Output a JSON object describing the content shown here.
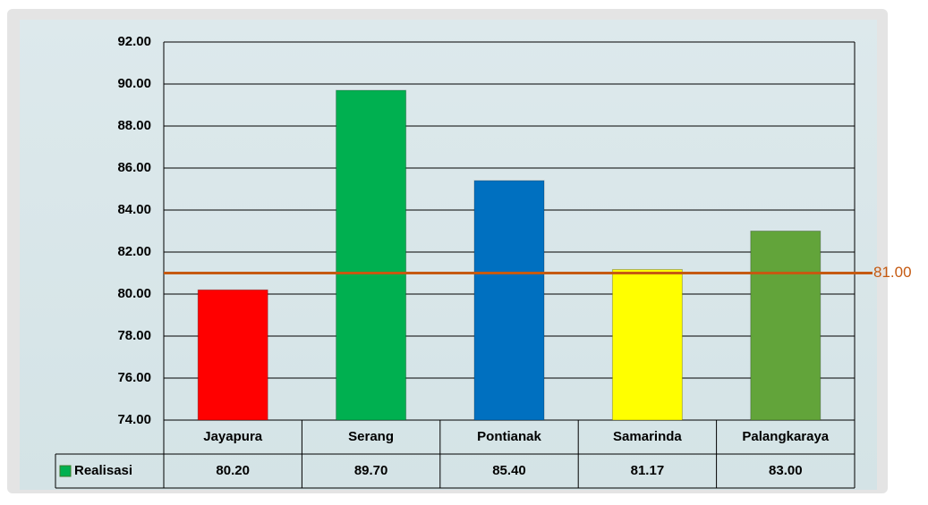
{
  "chart_data": {
    "type": "bar",
    "categories": [
      "Jayapura",
      "Serang",
      "Pontianak",
      "Samarinda",
      "Palangkaraya"
    ],
    "series": [
      {
        "name": "Realisasi",
        "color": "#00b050",
        "colors": [
          "#ff0000",
          "#00b050",
          "#0070c0",
          "#ffff00",
          "#62a43a"
        ],
        "values": [
          80.2,
          89.7,
          85.4,
          81.17,
          83
        ],
        "value_labels": [
          "80.20",
          "89.70",
          "85.40",
          "81.17",
          "83.00"
        ]
      }
    ],
    "ylim": [
      74,
      92
    ],
    "yticks": [
      {
        "value": 74,
        "label": "74.00"
      },
      {
        "value": 76,
        "label": "76.00"
      },
      {
        "value": 78,
        "label": "78.00"
      },
      {
        "value": 80,
        "label": "80.00"
      },
      {
        "value": 82,
        "label": "82.00"
      },
      {
        "value": 84,
        "label": "84.00"
      },
      {
        "value": 86,
        "label": "86.00"
      },
      {
        "value": 88,
        "label": "88.00"
      },
      {
        "value": 90,
        "label": "90.00"
      },
      {
        "value": 92,
        "label": "92.00"
      }
    ],
    "grid": true,
    "reference_line": {
      "value": 81,
      "label": "81.00",
      "color": "#c55a11"
    }
  }
}
